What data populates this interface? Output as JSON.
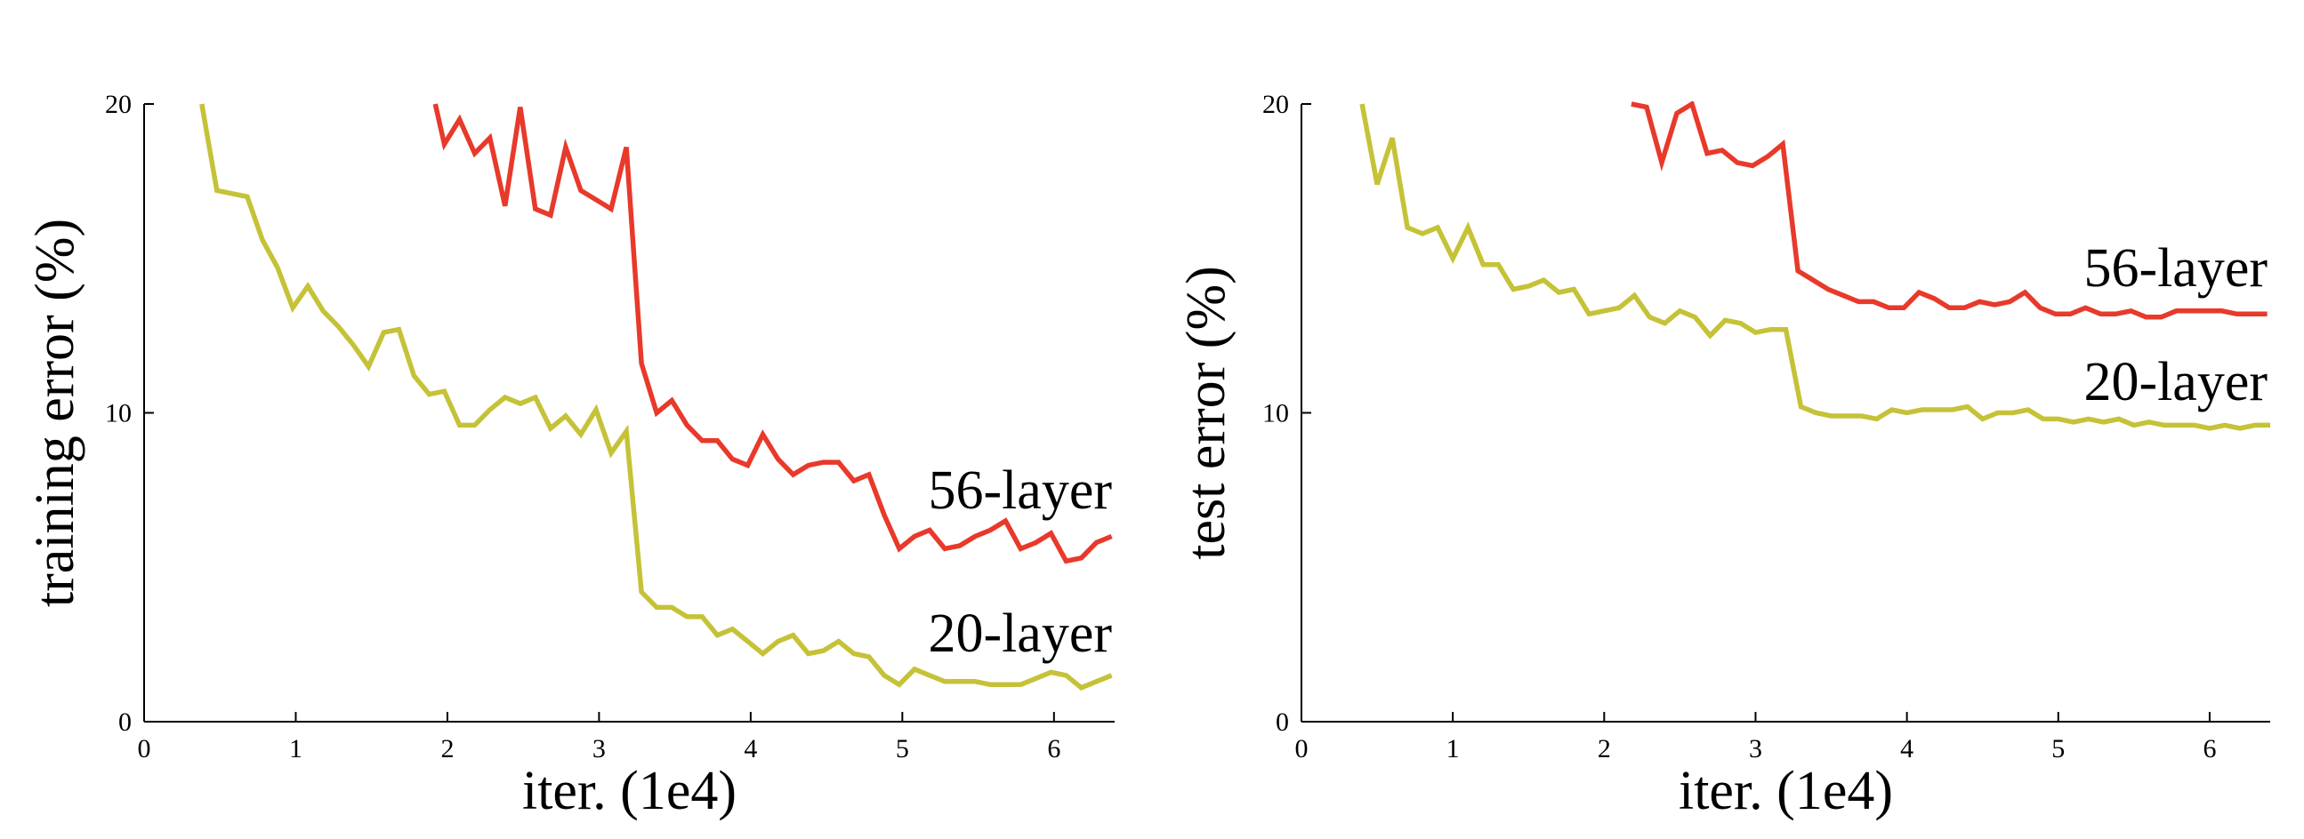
{
  "chart_data": [
    {
      "type": "line",
      "xlabel": "iter. (1e4)",
      "ylabel": "training error (%)",
      "xlim": [
        0,
        6.4
      ],
      "ylim": [
        0,
        20
      ],
      "xticks": [
        0,
        1,
        2,
        3,
        4,
        5,
        6
      ],
      "yticks": [
        0,
        10,
        20
      ],
      "grid": false,
      "series": [
        {
          "name": "56-layer",
          "color": "#e8392b",
          "x": [
            1.92,
            1.98,
            2.08,
            2.18,
            2.28,
            2.38,
            2.48,
            2.58,
            2.68,
            2.78,
            2.88,
            2.98,
            3.08,
            3.18,
            3.28,
            3.38,
            3.48,
            3.58,
            3.68,
            3.78,
            3.88,
            3.98,
            4.08,
            4.18,
            4.28,
            4.38,
            4.48,
            4.58,
            4.68,
            4.78,
            4.88,
            4.98,
            5.08,
            5.18,
            5.28,
            5.38,
            5.48,
            5.58,
            5.68,
            5.78,
            5.88,
            5.98,
            6.08,
            6.18,
            6.28,
            6.38
          ],
          "values": [
            20.0,
            18.7,
            19.5,
            18.4,
            18.9,
            16.7,
            19.9,
            16.6,
            16.4,
            18.6,
            17.2,
            16.9,
            16.6,
            18.6,
            11.6,
            10.0,
            10.4,
            9.6,
            9.1,
            9.1,
            8.5,
            8.3,
            9.3,
            8.5,
            8.0,
            8.3,
            8.4,
            8.4,
            7.8,
            8.0,
            6.7,
            5.6,
            6.0,
            6.2,
            5.6,
            5.7,
            6.0,
            6.2,
            6.5,
            5.6,
            5.8,
            6.1,
            5.2,
            5.3,
            5.8,
            6.0
          ]
        },
        {
          "name": "20-layer",
          "color": "#c5c238",
          "x": [
            0.38,
            0.48,
            0.58,
            0.68,
            0.78,
            0.88,
            0.98,
            1.08,
            1.18,
            1.28,
            1.38,
            1.48,
            1.58,
            1.68,
            1.78,
            1.88,
            1.98,
            2.08,
            2.18,
            2.28,
            2.38,
            2.48,
            2.58,
            2.68,
            2.78,
            2.88,
            2.98,
            3.08,
            3.18,
            3.28,
            3.38,
            3.48,
            3.58,
            3.68,
            3.78,
            3.88,
            3.98,
            4.08,
            4.18,
            4.28,
            4.38,
            4.48,
            4.58,
            4.68,
            4.78,
            4.88,
            4.98,
            5.08,
            5.18,
            5.28,
            5.38,
            5.48,
            5.58,
            5.68,
            5.78,
            5.88,
            5.98,
            6.08,
            6.18,
            6.28,
            6.38
          ],
          "values": [
            20.0,
            17.2,
            17.1,
            17.0,
            15.6,
            14.7,
            13.4,
            14.1,
            13.3,
            12.8,
            12.2,
            11.5,
            12.6,
            12.7,
            11.2,
            10.6,
            10.7,
            9.6,
            9.6,
            10.1,
            10.5,
            10.3,
            10.5,
            9.5,
            9.9,
            9.3,
            10.1,
            8.7,
            9.4,
            4.2,
            3.7,
            3.7,
            3.4,
            3.4,
            2.8,
            3.0,
            2.6,
            2.2,
            2.6,
            2.8,
            2.2,
            2.3,
            2.6,
            2.2,
            2.1,
            1.5,
            1.2,
            1.7,
            1.5,
            1.3,
            1.3,
            1.3,
            1.2,
            1.2,
            1.2,
            1.4,
            1.6,
            1.5,
            1.1,
            1.3,
            1.5
          ]
        }
      ]
    },
    {
      "type": "line",
      "xlabel": "iter. (1e4)",
      "ylabel": "test error (%)",
      "xlim": [
        0,
        6.4
      ],
      "ylim": [
        0,
        20
      ],
      "xticks": [
        0,
        1,
        2,
        3,
        4,
        5,
        6
      ],
      "yticks": [
        0,
        10,
        20
      ],
      "grid": false,
      "series": [
        {
          "name": "56-layer",
          "color": "#e8392b",
          "x": [
            2.18,
            2.28,
            2.38,
            2.48,
            2.58,
            2.68,
            2.78,
            2.88,
            2.98,
            3.08,
            3.18,
            3.28,
            3.38,
            3.48,
            3.58,
            3.68,
            3.78,
            3.88,
            3.98,
            4.08,
            4.18,
            4.28,
            4.38,
            4.48,
            4.58,
            4.68,
            4.78,
            4.88,
            4.98,
            5.08,
            5.18,
            5.28,
            5.38,
            5.48,
            5.58,
            5.68,
            5.78,
            5.88,
            5.98,
            6.08,
            6.18,
            6.28,
            6.38
          ],
          "values": [
            20.0,
            19.9,
            18.1,
            19.7,
            20.0,
            18.4,
            18.5,
            18.1,
            18.0,
            18.3,
            18.7,
            14.6,
            14.3,
            14.0,
            13.8,
            13.6,
            13.6,
            13.4,
            13.4,
            13.9,
            13.7,
            13.4,
            13.4,
            13.6,
            13.5,
            13.6,
            13.9,
            13.4,
            13.2,
            13.2,
            13.4,
            13.2,
            13.2,
            13.3,
            13.1,
            13.1,
            13.3,
            13.3,
            13.3,
            13.3,
            13.2,
            13.2,
            13.2
          ]
        },
        {
          "name": "20-layer",
          "color": "#c5c238",
          "x": [
            0.4,
            0.5,
            0.6,
            0.7,
            0.8,
            0.9,
            1.0,
            1.1,
            1.2,
            1.3,
            1.4,
            1.5,
            1.6,
            1.7,
            1.8,
            1.9,
            2.0,
            2.1,
            2.2,
            2.3,
            2.4,
            2.5,
            2.6,
            2.7,
            2.8,
            2.9,
            3.0,
            3.1,
            3.2,
            3.3,
            3.4,
            3.5,
            3.6,
            3.7,
            3.8,
            3.9,
            4.0,
            4.1,
            4.2,
            4.3,
            4.4,
            4.5,
            4.6,
            4.7,
            4.8,
            4.9,
            5.0,
            5.1,
            5.2,
            5.3,
            5.4,
            5.5,
            5.6,
            5.7,
            5.8,
            5.9,
            6.0,
            6.1,
            6.2,
            6.3,
            6.4
          ],
          "values": [
            20.0,
            17.4,
            18.9,
            16.0,
            15.8,
            16.0,
            15.0,
            16.0,
            14.8,
            14.8,
            14.0,
            14.1,
            14.3,
            13.9,
            14.0,
            13.2,
            13.3,
            13.4,
            13.8,
            13.1,
            12.9,
            13.3,
            13.1,
            12.5,
            13.0,
            12.9,
            12.6,
            12.7,
            12.7,
            10.2,
            10.0,
            9.9,
            9.9,
            9.9,
            9.8,
            10.1,
            10.0,
            10.1,
            10.1,
            10.1,
            10.2,
            9.8,
            10.0,
            10.0,
            10.1,
            9.8,
            9.8,
            9.7,
            9.8,
            9.7,
            9.8,
            9.6,
            9.7,
            9.6,
            9.6,
            9.6,
            9.5,
            9.6,
            9.5,
            9.6,
            9.6
          ]
        }
      ]
    }
  ]
}
